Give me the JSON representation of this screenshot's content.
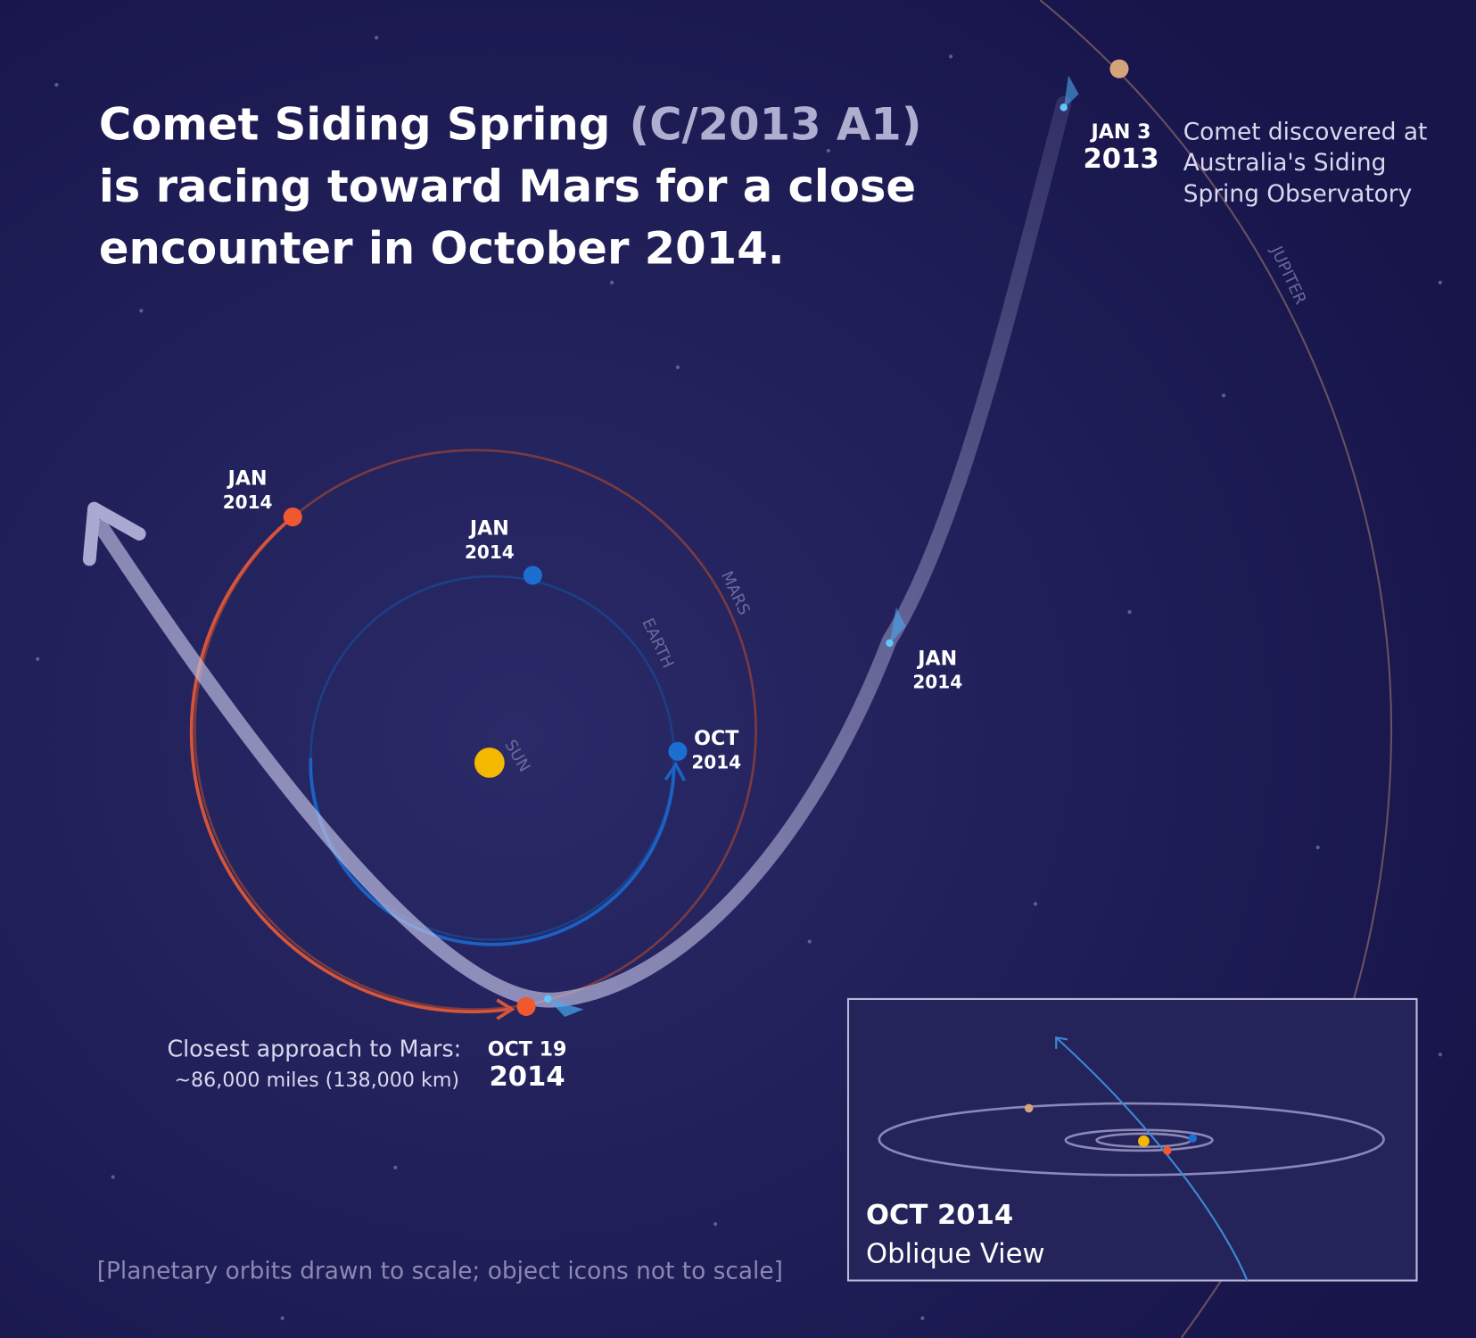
{
  "title": {
    "name": "Comet Siding Spring",
    "designation": "(C/2013 A1)",
    "line2": "is racing toward Mars for a close",
    "line3": "encounter in October 2014."
  },
  "orbit_labels": {
    "sun": "SUN",
    "earth": "EARTH",
    "mars": "MARS",
    "jupiter": "JUPITER"
  },
  "dates": {
    "mars_jan": {
      "month": "JAN",
      "year": "2014"
    },
    "earth_jan": {
      "month": "JAN",
      "year": "2014"
    },
    "earth_oct": {
      "month": "OCT",
      "year": "2014"
    },
    "comet_jan": {
      "month": "JAN",
      "year": "2014"
    },
    "discovery": {
      "month": "JAN 3",
      "year": "2013"
    },
    "closest": {
      "month": "OCT 19",
      "year": "2014"
    }
  },
  "discovery_note": [
    "Comet discovered at",
    "Australia's Siding",
    "Spring Observatory"
  ],
  "closest_approach": [
    "Closest approach to Mars:",
    "~86,000 miles (138,000 km)"
  ],
  "inset": {
    "title": "OCT 2014",
    "subtitle": "Oblique View"
  },
  "footnote": "[Planetary orbits drawn to scale; object icons not to scale]"
}
